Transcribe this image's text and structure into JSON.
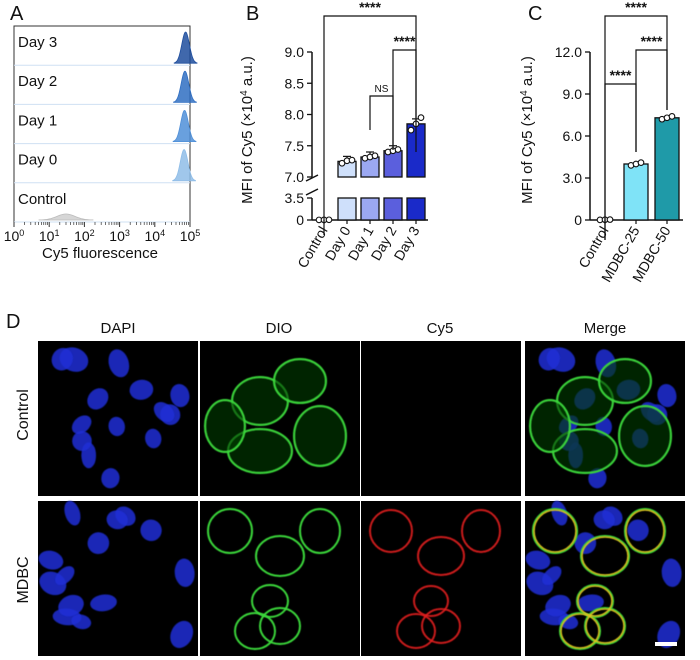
{
  "panels": {
    "a": "A",
    "b": "B",
    "c": "C",
    "d": "D"
  },
  "chart_data": [
    {
      "type": "histogram",
      "panel": "A",
      "xlabel": "Cy5 fluorescence",
      "x_scale": "log",
      "xlim": [
        1,
        100000
      ],
      "tick_labels": [
        {
          "base": "10",
          "exp": "0",
          "value": 1
        },
        {
          "base": "10",
          "exp": "1",
          "value": 10
        },
        {
          "base": "10",
          "exp": "2",
          "value": 100
        },
        {
          "base": "10",
          "exp": "3",
          "value": 1000
        },
        {
          "base": "10",
          "exp": "4",
          "value": 10000
        },
        {
          "base": "10",
          "exp": "5",
          "value": 100000
        }
      ],
      "series": [
        {
          "name": "Day 3",
          "peak": 75000,
          "color": "#1f4e9e"
        },
        {
          "name": "Day 2",
          "peak": 72000,
          "color": "#2f6ec2"
        },
        {
          "name": "Day 1",
          "peak": 70000,
          "color": "#4f8fd8"
        },
        {
          "name": "Day 0",
          "peak": 68000,
          "color": "#8fbde8"
        },
        {
          "name": "Control",
          "peak": 30,
          "color": "#bbbbbb"
        }
      ]
    },
    {
      "type": "bar",
      "panel": "B",
      "ylabel_main": "MFI of Cy5 (×10",
      "ylabel_exp": "4",
      "ylabel_tail": " a.u.)",
      "categories": [
        "Control",
        "Day 0",
        "Day 1",
        "Day 2",
        "Day 3"
      ],
      "values": [
        0.02,
        7.25,
        7.32,
        7.42,
        7.85
      ],
      "points": [
        [
          0.01,
          0.02,
          0.03
        ],
        [
          7.22,
          7.26,
          7.27
        ],
        [
          7.3,
          7.32,
          7.34
        ],
        [
          7.4,
          7.42,
          7.44
        ],
        [
          7.75,
          7.85,
          7.95
        ]
      ],
      "colors": [
        "#ffffff",
        "#cfe0fb",
        "#9ba8f2",
        "#5b5fdd",
        "#1a2ac9"
      ],
      "axis_break": [
        3.5,
        7.0
      ],
      "ylim_lower": [
        0,
        3.5
      ],
      "ylim_upper": [
        7.0,
        9.0
      ],
      "yticks": [
        "0",
        "3.5",
        "7.0",
        "7.5",
        "8.0",
        "8.5",
        "9.0"
      ],
      "annotations": [
        {
          "text": "****",
          "from": "Control",
          "to": "Day 3"
        },
        {
          "text": "****",
          "from": "Day 2",
          "to": "Day 3"
        },
        {
          "text": "NS",
          "from": "Day 1",
          "to": "Day 2"
        }
      ]
    },
    {
      "type": "bar",
      "panel": "C",
      "ylabel_main": "MFI of Cy5 (×10",
      "ylabel_exp": "4",
      "ylabel_tail": " a.u.)",
      "categories": [
        "Control",
        "MDBC-25",
        "MDBC-50"
      ],
      "values": [
        0.02,
        4.0,
        7.3
      ],
      "points": [
        [
          0.01,
          0.02,
          0.03
        ],
        [
          3.9,
          4.0,
          4.1
        ],
        [
          7.2,
          7.3,
          7.4
        ]
      ],
      "colors": [
        "#ffffff",
        "#7fe3f7",
        "#1f9aa8"
      ],
      "ylim": [
        0,
        12.0
      ],
      "yticks": [
        "0",
        "3.0",
        "6.0",
        "9.0",
        "12.0"
      ],
      "annotations": [
        {
          "text": "****",
          "from": "Control",
          "to": "MDBC-50"
        },
        {
          "text": "****",
          "from": "MDBC-25",
          "to": "MDBC-50"
        },
        {
          "text": "****",
          "from": "Control",
          "to": "MDBC-25"
        }
      ]
    }
  ],
  "microscopy": {
    "channels": [
      "DAPI",
      "DIO",
      "Cy5",
      "Merge"
    ],
    "rows": [
      "Control",
      "MDBC"
    ]
  }
}
